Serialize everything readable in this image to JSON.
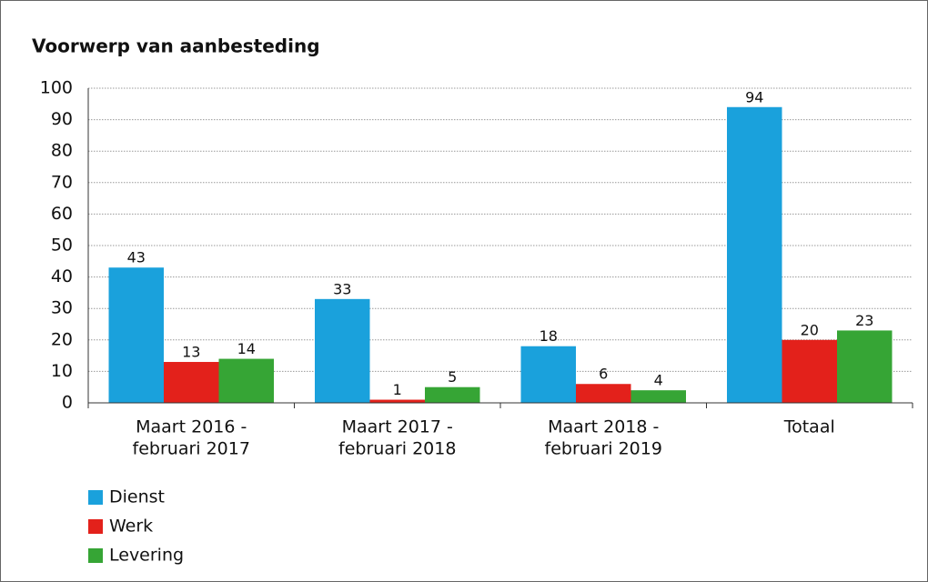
{
  "chart_data": {
    "type": "bar",
    "title": "Voorwerp van aanbesteding",
    "categories": [
      [
        "Maart 2016 -",
        "februari 2017"
      ],
      [
        "Maart 2017 -",
        "februari 2018"
      ],
      [
        "Maart 2018 -",
        "februari 2019"
      ],
      [
        "Totaal"
      ]
    ],
    "series": [
      {
        "name": "Dienst",
        "color": "#1aa1dc",
        "values": [
          43,
          33,
          18,
          94
        ]
      },
      {
        "name": "Werk",
        "color": "#e3211b",
        "values": [
          13,
          1,
          6,
          20
        ]
      },
      {
        "name": "Levering",
        "color": "#36a535",
        "values": [
          14,
          5,
          4,
          23
        ]
      }
    ],
    "ylim": [
      0,
      100
    ],
    "yticks": [
      0,
      10,
      20,
      30,
      40,
      50,
      60,
      70,
      80,
      90,
      100
    ],
    "grid": true
  }
}
